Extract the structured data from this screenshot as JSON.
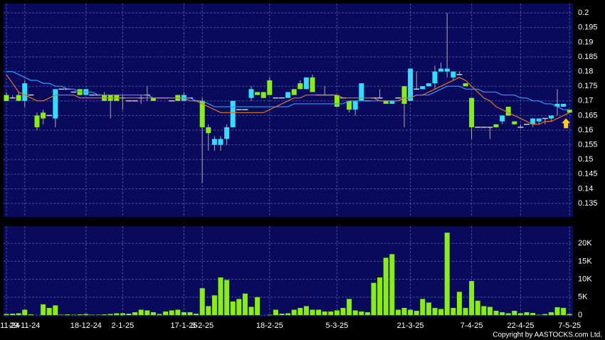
{
  "chart_data": [
    {
      "type": "candlestick",
      "up_color": "#33ddff",
      "down_color": "#88ee11",
      "flat_color": "#cccccc",
      "wick_color": "#aaaaaa",
      "open": [
        0.172,
        0.171,
        0.172,
        0.17,
        0.172,
        0.165,
        0.166,
        0.165,
        0.164,
        0.174,
        0.174,
        0.173,
        0.174,
        0.172,
        0.172,
        0.172,
        0.172,
        0.172,
        0.172,
        0.171,
        0.17,
        0.17,
        0.171,
        0.172,
        0.171,
        0.171,
        0.171,
        0.17,
        0.172,
        0.17,
        0.171,
        0.17,
        0.17,
        0.161,
        0.155,
        0.155,
        0.157,
        0.161,
        0.167,
        0.167,
        0.171,
        0.173,
        0.173,
        0.177,
        0.171,
        0.171,
        0.171,
        0.174,
        0.176,
        0.174,
        0.178,
        0.172,
        0.172,
        0.172,
        0.172,
        0.171,
        0.17,
        0.167,
        0.17,
        0.17,
        0.171,
        0.171,
        0.17,
        0.169,
        0.171,
        0.175,
        0.17,
        0.174,
        0.174,
        0.175,
        0.176,
        0.18,
        0.18,
        0.178,
        0.179,
        0.176,
        0.171,
        0.161,
        0.161,
        0.161,
        0.162,
        0.163,
        0.168,
        0.163,
        0.161,
        0.162,
        0.162,
        0.163,
        0.164,
        0.164,
        0.168,
        0.168,
        0.167
      ],
      "high": [
        0.173,
        0.172,
        0.173,
        0.177,
        0.172,
        0.166,
        0.167,
        0.165,
        0.174,
        0.174,
        0.174,
        0.173,
        0.174,
        0.174,
        0.172,
        0.172,
        0.173,
        0.172,
        0.172,
        0.172,
        0.17,
        0.17,
        0.172,
        0.175,
        0.171,
        0.171,
        0.171,
        0.17,
        0.172,
        0.173,
        0.171,
        0.17,
        0.171,
        0.162,
        0.158,
        0.158,
        0.162,
        0.17,
        0.167,
        0.167,
        0.175,
        0.173,
        0.173,
        0.178,
        0.171,
        0.171,
        0.173,
        0.174,
        0.177,
        0.178,
        0.179,
        0.172,
        0.175,
        0.172,
        0.172,
        0.171,
        0.17,
        0.17,
        0.176,
        0.17,
        0.171,
        0.174,
        0.17,
        0.17,
        0.171,
        0.175,
        0.181,
        0.18,
        0.175,
        0.176,
        0.182,
        0.183,
        0.2,
        0.18,
        0.18,
        0.176,
        0.171,
        0.161,
        0.161,
        0.161,
        0.162,
        0.165,
        0.168,
        0.163,
        0.162,
        0.162,
        0.164,
        0.164,
        0.164,
        0.165,
        0.174,
        0.169,
        0.167
      ],
      "low": [
        0.17,
        0.171,
        0.17,
        0.168,
        0.172,
        0.16,
        0.162,
        0.165,
        0.161,
        0.174,
        0.174,
        0.173,
        0.172,
        0.172,
        0.172,
        0.172,
        0.17,
        0.164,
        0.17,
        0.167,
        0.17,
        0.17,
        0.169,
        0.17,
        0.17,
        0.171,
        0.171,
        0.17,
        0.17,
        0.17,
        0.171,
        0.17,
        0.142,
        0.153,
        0.153,
        0.153,
        0.155,
        0.161,
        0.167,
        0.167,
        0.17,
        0.172,
        0.171,
        0.172,
        0.171,
        0.171,
        0.171,
        0.172,
        0.174,
        0.174,
        0.173,
        0.172,
        0.172,
        0.172,
        0.168,
        0.171,
        0.166,
        0.165,
        0.17,
        0.17,
        0.171,
        0.171,
        0.169,
        0.169,
        0.171,
        0.161,
        0.17,
        0.174,
        0.174,
        0.175,
        0.174,
        0.18,
        0.178,
        0.177,
        0.179,
        0.175,
        0.157,
        0.161,
        0.161,
        0.157,
        0.161,
        0.162,
        0.165,
        0.162,
        0.161,
        0.162,
        0.161,
        0.162,
        0.162,
        0.163,
        0.165,
        0.168,
        0.166
      ],
      "close": [
        0.17,
        0.171,
        0.17,
        0.176,
        0.172,
        0.161,
        0.164,
        0.165,
        0.174,
        0.174,
        0.174,
        0.173,
        0.172,
        0.174,
        0.172,
        0.172,
        0.17,
        0.17,
        0.17,
        0.171,
        0.17,
        0.17,
        0.171,
        0.172,
        0.17,
        0.171,
        0.171,
        0.17,
        0.17,
        0.172,
        0.171,
        0.17,
        0.161,
        0.159,
        0.157,
        0.157,
        0.161,
        0.17,
        0.167,
        0.167,
        0.174,
        0.172,
        0.171,
        0.172,
        0.171,
        0.171,
        0.173,
        0.172,
        0.174,
        0.178,
        0.173,
        0.172,
        0.172,
        0.172,
        0.168,
        0.171,
        0.167,
        0.17,
        0.176,
        0.17,
        0.171,
        0.171,
        0.169,
        0.17,
        0.171,
        0.169,
        0.181,
        0.174,
        0.175,
        0.176,
        0.18,
        0.181,
        0.181,
        0.18,
        0.179,
        0.175,
        0.161,
        0.161,
        0.161,
        0.161,
        0.161,
        0.165,
        0.165,
        0.162,
        0.161,
        0.162,
        0.164,
        0.164,
        0.164,
        0.165,
        0.169,
        0.169,
        0.166
      ],
      "series": [
        {
          "color": "#3399ff",
          "values": [
            0.18,
            0.18,
            0.179,
            0.178,
            0.177,
            0.177,
            0.176,
            0.176,
            0.175,
            0.175,
            0.174,
            0.174,
            0.173,
            0.173,
            0.173,
            0.172,
            0.172,
            0.172,
            0.172,
            0.172,
            0.172,
            0.172,
            0.172,
            0.172,
            0.171,
            0.171,
            0.171,
            0.171,
            0.171,
            0.171,
            0.171,
            0.17,
            0.17,
            0.169,
            0.168,
            0.168,
            0.168,
            0.168,
            0.168,
            0.168,
            0.168,
            0.168,
            0.168,
            0.168,
            0.168,
            0.168,
            0.168,
            0.169,
            0.169,
            0.169,
            0.169,
            0.169,
            0.169,
            0.169,
            0.169,
            0.169,
            0.17,
            0.17,
            0.17,
            0.17,
            0.17,
            0.17,
            0.17,
            0.17,
            0.17,
            0.171,
            0.171,
            0.172,
            0.172,
            0.172,
            0.173,
            0.174,
            0.175,
            0.175,
            0.175,
            0.174,
            0.174,
            0.174,
            0.173,
            0.173,
            0.173,
            0.172,
            0.172,
            0.172,
            0.171,
            0.171,
            0.17,
            0.17,
            0.169,
            0.169,
            0.168,
            0.167,
            0.167
          ]
        },
        {
          "color": "#dd7722",
          "values": [
            0.179,
            0.176,
            0.173,
            0.172,
            0.171,
            0.17,
            0.17,
            0.171,
            0.172,
            0.172,
            0.172,
            0.172,
            0.171,
            0.171,
            0.171,
            0.171,
            0.171,
            0.171,
            0.171,
            0.171,
            0.171,
            0.171,
            0.171,
            0.171,
            0.171,
            0.171,
            0.171,
            0.171,
            0.171,
            0.171,
            0.17,
            0.17,
            0.169,
            0.168,
            0.167,
            0.166,
            0.166,
            0.166,
            0.166,
            0.166,
            0.166,
            0.166,
            0.166,
            0.167,
            0.168,
            0.169,
            0.17,
            0.171,
            0.171,
            0.172,
            0.172,
            0.172,
            0.172,
            0.172,
            0.172,
            0.171,
            0.171,
            0.171,
            0.171,
            0.171,
            0.171,
            0.17,
            0.17,
            0.17,
            0.17,
            0.171,
            0.171,
            0.172,
            0.172,
            0.173,
            0.174,
            0.175,
            0.176,
            0.177,
            0.178,
            0.177,
            0.175,
            0.173,
            0.171,
            0.17,
            0.168,
            0.167,
            0.166,
            0.165,
            0.164,
            0.163,
            0.162,
            0.162,
            0.163,
            0.163,
            0.164,
            0.165,
            0.166
          ]
        }
      ],
      "ylim": [
        0.1304,
        0.2032
      ],
      "yticks": [
        0.135,
        0.14,
        0.145,
        0.15,
        0.155,
        0.16,
        0.165,
        0.17,
        0.175,
        0.18,
        0.185,
        0.19,
        0.195,
        0.2
      ],
      "grid": true
    },
    {
      "type": "bar",
      "color": "#88ee11",
      "categories": [
        "5-11-24",
        null,
        null,
        "29-11-24",
        null,
        null,
        null,
        null,
        null,
        null,
        null,
        null,
        null,
        "18-12-24",
        null,
        null,
        null,
        null,
        null,
        "2-1-25",
        null,
        null,
        null,
        null,
        null,
        null,
        null,
        null,
        null,
        "17-1-25",
        null,
        null,
        "3-2-25",
        null,
        null,
        null,
        null,
        null,
        null,
        null,
        null,
        null,
        null,
        "18-2-25",
        null,
        null,
        null,
        null,
        null,
        null,
        null,
        null,
        null,
        null,
        "5-3-25",
        null,
        null,
        null,
        null,
        null,
        null,
        null,
        null,
        null,
        null,
        null,
        "21-3-25",
        null,
        null,
        null,
        null,
        null,
        null,
        null,
        null,
        null,
        "7-4-25",
        null,
        null,
        null,
        null,
        null,
        null,
        null,
        "22-4-25",
        null,
        null,
        null,
        null,
        null,
        null,
        null,
        "7-5-25"
      ],
      "values": [
        300,
        400,
        500,
        1500,
        200,
        0,
        3000,
        2000,
        2700,
        100,
        200,
        100,
        200,
        300,
        100,
        100,
        200,
        300,
        500,
        500,
        400,
        800,
        1500,
        1300,
        800,
        300,
        1000,
        1300,
        1500,
        800,
        800,
        400,
        7500,
        2500,
        5500,
        10500,
        9800,
        3800,
        4500,
        6000,
        2300,
        5000,
        0,
        100,
        1500,
        400,
        500,
        1500,
        2000,
        2500,
        1500,
        1500,
        1000,
        1000,
        1300,
        2000,
        4500,
        1300,
        1000,
        800,
        9000,
        10500,
        16000,
        17000,
        1500,
        2000,
        1500,
        1200,
        4500,
        3500,
        2000,
        1700,
        23000,
        2000,
        6500,
        2000,
        9500,
        4000,
        2500,
        2300,
        1200,
        800,
        500,
        1200,
        500,
        800,
        600,
        100,
        300,
        800,
        2200,
        2000,
        300
      ],
      "ylim": [
        -400,
        24800
      ],
      "yticks": [
        0,
        {
          "value": 5000,
          "label": "5K"
        },
        {
          "value": 10000,
          "label": "10K"
        },
        {
          "value": 15000,
          "label": "15K"
        },
        {
          "value": 20000,
          "label": "20K"
        }
      ],
      "grid": true,
      "annotation": "Copyright by AASTOCKS.com Ltd."
    }
  ]
}
